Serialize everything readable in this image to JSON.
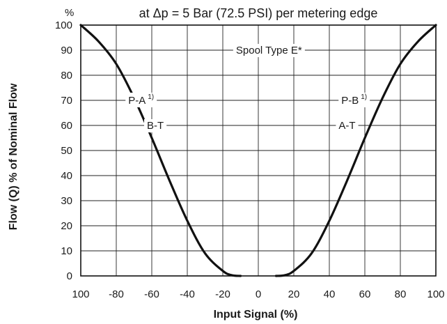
{
  "chart_data": {
    "type": "line",
    "title": "at Δp = 5 Bar (72.5 PSI) per metering edge",
    "xlabel": "Input Signal (%)",
    "ylabel": "Flow (Q) % of Nominal Flow",
    "y_unit": "%",
    "xlim": [
      -100,
      100
    ],
    "ylim": [
      0,
      100
    ],
    "grid": true,
    "x_ticks": [
      "100",
      "-80",
      "-60",
      "-40",
      "-20",
      "0",
      "20",
      "40",
      "60",
      "80",
      "100"
    ],
    "y_ticks": [
      "0",
      "10",
      "20",
      "30",
      "40",
      "50",
      "60",
      "70",
      "80",
      "90",
      "100"
    ],
    "annotations": {
      "spool": "Spool Type E*",
      "left_top": "P-A",
      "left_bottom": "B-T",
      "right_top": "P-B",
      "right_bottom": "A-T",
      "footnote_mark": "1)"
    },
    "series": [
      {
        "x": [
          -100,
          -90,
          -80,
          -70,
          -60,
          -50,
          -40,
          -30,
          -20,
          -15,
          -10
        ],
        "y": [
          100,
          93.5,
          84.5,
          71,
          55,
          38,
          22,
          9,
          2,
          0.3,
          0
        ]
      },
      {
        "x": [
          10,
          15,
          20,
          30,
          40,
          50,
          60,
          70,
          80,
          90,
          100
        ],
        "y": [
          0,
          0.3,
          2,
          9,
          22,
          38,
          55,
          71,
          84.5,
          93.5,
          100
        ]
      }
    ]
  }
}
